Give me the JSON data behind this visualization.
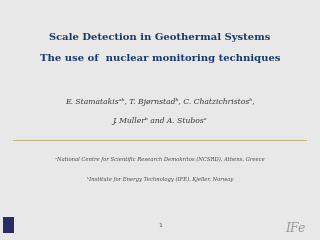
{
  "title_line1": "Scale Detection in Geothermal Systems",
  "title_line2": "The use of  nuclear monitoring techniques",
  "title_color": "#1a3a6b",
  "authors_line1": "E. Stamatakisᵃᵇ, T. Bjørnstadᵇ, C. Chatzichristosᵇ,",
  "authors_line2": "J. Mullerᵇ and A. Stubosᵃ",
  "affil_line1": "ᵃNational Centre for Scientific Research Demokritos (NCSRD), Athens, Greece",
  "affil_line2": "ᵇInstitute for Energy Technology (IFE), Kjeller, Norway",
  "page_number": "1",
  "bg_color": "#ffffff",
  "slide_bg": "#e8e8e8",
  "divider_color": "#c8b080",
  "title_fontsize": 7.2,
  "authors_fontsize": 5.5,
  "affil_fontsize": 3.8,
  "page_fontsize": 4.5,
  "ife_fontsize": 9.0,
  "text_color": "#444444",
  "authors_color": "#333333",
  "ife_color": "#999999"
}
